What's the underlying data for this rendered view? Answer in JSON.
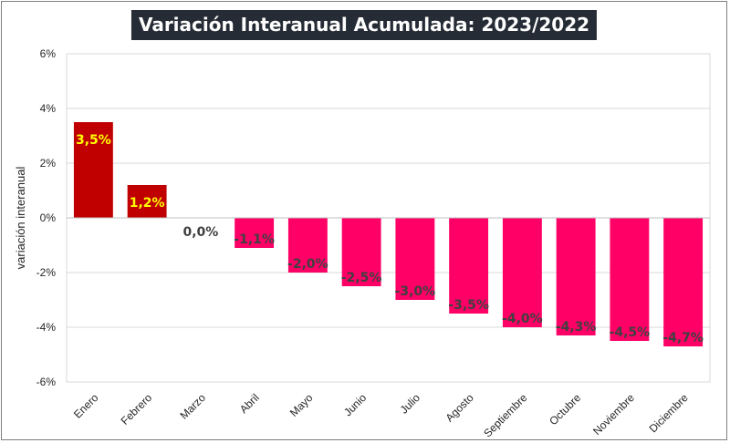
{
  "chart_data": {
    "type": "bar",
    "title": "Variación Interanual Acumulada: 2023/2022",
    "xlabel": "",
    "ylabel": "variación interanual",
    "ylim": [
      -6,
      6
    ],
    "yticks": [
      6,
      4,
      2,
      0,
      -2,
      -4,
      -6
    ],
    "ytick_labels": [
      "6%",
      "4%",
      "2%",
      "0%",
      "-2%",
      "-4%",
      "-6%"
    ],
    "grid": true,
    "categories": [
      "Enero",
      "Febrero",
      "Marzo",
      "Abril",
      "Mayo",
      "Junio",
      "Julio",
      "Agosto",
      "Septiembre",
      "Octubre",
      "Noviembre",
      "Diciembre"
    ],
    "values": [
      3.5,
      1.2,
      0.0,
      -1.1,
      -2.0,
      -2.5,
      -3.0,
      -3.5,
      -4.0,
      -4.3,
      -4.5,
      -4.7
    ],
    "data_labels": [
      "3,5%",
      "1,2%",
      "0,0%",
      "-1,1%",
      "-2,0%",
      "-2,5%",
      "-3,0%",
      "-3,5%",
      "-4,0%",
      "-4,3%",
      "-4,5%",
      "-4,7%"
    ],
    "colors": {
      "positive": "#c00000",
      "negative": "#ff0066",
      "positive_label": "#ffff00",
      "negative_label": "#404040",
      "zero_label": "#404040",
      "title_bg": "#262c35"
    }
  }
}
